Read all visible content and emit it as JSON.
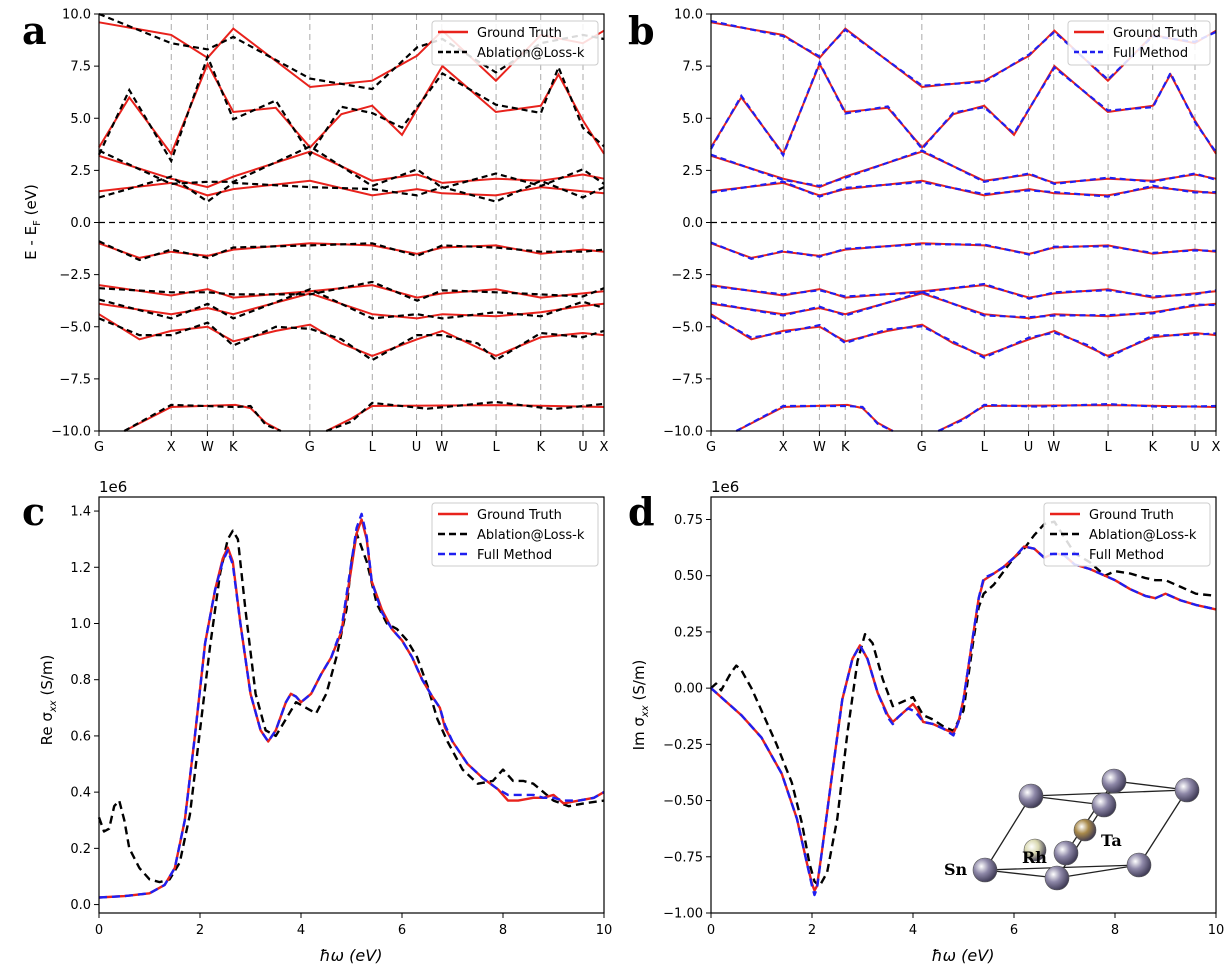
{
  "figure": {
    "panel_letters": [
      "a",
      "b",
      "c",
      "d"
    ],
    "inset": {
      "atoms": [
        "Rh",
        "Ta",
        "Sn"
      ],
      "colors": {
        "Sn": "#8e88a8",
        "Ta": "#a8894a",
        "Rh": "#d9d8b0",
        "cell_line": "#222222"
      }
    }
  },
  "chart_data": [
    {
      "id": "a",
      "type": "line",
      "title": "",
      "xlabel": "",
      "ylabel": "E - E_F (eV)",
      "ylabel_main": "E - E",
      "ylabel_sub": "F",
      "ylabel_unit": "(eV)",
      "ylim": [
        -10.0,
        10.0
      ],
      "yticks": [
        -10.0,
        -7.5,
        -5.0,
        -2.5,
        0.0,
        2.5,
        5.0,
        7.5,
        10.0
      ],
      "ytick_labels": [
        "−10.0",
        "−7.5",
        "−5.0",
        "−2.5",
        "0.0",
        "2.5",
        "5.0",
        "7.5",
        "10.0"
      ],
      "kpath_labels": [
        "G",
        "X",
        "W",
        "K",
        "G",
        "L",
        "U",
        "W",
        "L",
        "K",
        "U",
        "X"
      ],
      "kpath_positions": [
        0,
        0.1431,
        0.2147,
        0.2658,
        0.4175,
        0.5412,
        0.6288,
        0.6787,
        0.7863,
        0.8747,
        0.9584,
        1.0
      ],
      "fermi_level": 0.0,
      "legend": {
        "position": "top-right",
        "entries": [
          "Ground Truth",
          "Ablation@Loss-k"
        ]
      },
      "series": [
        {
          "name": "Ground Truth",
          "color": "#e8221c",
          "style": "solid"
        },
        {
          "name": "Ablation@Loss-k",
          "color": "#000000",
          "style": "dashed"
        }
      ]
    },
    {
      "id": "b",
      "type": "line",
      "title": "",
      "xlabel": "",
      "ylabel": "",
      "ylim": [
        -10.0,
        10.0
      ],
      "yticks": [
        -10.0,
        -7.5,
        -5.0,
        -2.5,
        0.0,
        2.5,
        5.0,
        7.5,
        10.0
      ],
      "ytick_labels": [
        "−10.0",
        "−7.5",
        "−5.0",
        "−2.5",
        "0.0",
        "2.5",
        "5.0",
        "7.5",
        "10.0"
      ],
      "kpath_labels": [
        "G",
        "X",
        "W",
        "K",
        "G",
        "L",
        "U",
        "W",
        "L",
        "K",
        "U",
        "X"
      ],
      "kpath_positions": [
        0,
        0.1431,
        0.2147,
        0.2658,
        0.4175,
        0.5412,
        0.6288,
        0.6787,
        0.7863,
        0.8747,
        0.9584,
        1.0
      ],
      "fermi_level": 0.0,
      "legend": {
        "position": "top-right",
        "entries": [
          "Ground Truth",
          "Full Method"
        ]
      },
      "series": [
        {
          "name": "Ground Truth",
          "color": "#e8221c",
          "style": "solid"
        },
        {
          "name": "Full Method",
          "color": "#1f1ff0",
          "style": "dashed"
        }
      ]
    },
    {
      "id": "c",
      "type": "line",
      "title": "",
      "xlabel": "ħω (eV)",
      "ylabel": "Re σ_xx (S/m)",
      "ylabel_prefix": "Re σ",
      "ylabel_sub": "xx",
      "ylabel_unit": "(S/m)",
      "scale_label": "1e6",
      "xlim": [
        0,
        10
      ],
      "ylim": [
        -0.03,
        1.45
      ],
      "xticks": [
        0,
        2,
        4,
        6,
        8,
        10
      ],
      "xtick_labels": [
        "0",
        "2",
        "4",
        "6",
        "8",
        "10"
      ],
      "yticks": [
        0.0,
        0.2,
        0.4,
        0.6,
        0.8,
        1.0,
        1.2,
        1.4
      ],
      "ytick_labels": [
        "0.0",
        "0.2",
        "0.4",
        "0.6",
        "0.8",
        "1.0",
        "1.2",
        "1.4"
      ],
      "legend": {
        "position": "top-right",
        "entries": [
          "Ground Truth",
          "Ablation@Loss-k",
          "Full Method"
        ]
      },
      "series": [
        {
          "name": "Ground Truth",
          "color": "#e8221c",
          "style": "solid",
          "x": [
            0,
            0.5,
            1.0,
            1.3,
            1.5,
            1.7,
            1.9,
            2.1,
            2.3,
            2.45,
            2.55,
            2.65,
            2.8,
            3.0,
            3.2,
            3.35,
            3.5,
            3.7,
            3.8,
            3.9,
            4.0,
            4.2,
            4.4,
            4.6,
            4.8,
            5.0,
            5.1,
            5.2,
            5.3,
            5.4,
            5.6,
            5.8,
            6.0,
            6.2,
            6.4,
            6.6,
            6.75,
            6.85,
            7.0,
            7.3,
            7.6,
            7.9,
            8.1,
            8.3,
            8.6,
            8.8,
            9.0,
            9.2,
            9.5,
            9.8,
            10.0
          ],
          "y": [
            0.025,
            0.03,
            0.04,
            0.07,
            0.13,
            0.3,
            0.6,
            0.93,
            1.12,
            1.23,
            1.27,
            1.22,
            1.0,
            0.75,
            0.62,
            0.58,
            0.62,
            0.72,
            0.75,
            0.74,
            0.72,
            0.75,
            0.82,
            0.88,
            0.97,
            1.2,
            1.32,
            1.37,
            1.3,
            1.15,
            1.05,
            0.98,
            0.94,
            0.88,
            0.8,
            0.74,
            0.7,
            0.63,
            0.58,
            0.5,
            0.45,
            0.41,
            0.37,
            0.37,
            0.38,
            0.38,
            0.39,
            0.36,
            0.37,
            0.38,
            0.4
          ]
        },
        {
          "name": "Ablation@Loss-k",
          "color": "#000000",
          "style": "dashed",
          "x": [
            0,
            0.1,
            0.2,
            0.3,
            0.4,
            0.5,
            0.6,
            0.8,
            1.0,
            1.2,
            1.4,
            1.6,
            1.8,
            2.0,
            2.2,
            2.4,
            2.55,
            2.65,
            2.75,
            2.9,
            3.1,
            3.3,
            3.5,
            3.7,
            3.9,
            4.1,
            4.3,
            4.5,
            4.7,
            4.9,
            5.0,
            5.1,
            5.3,
            5.5,
            5.7,
            5.9,
            6.1,
            6.3,
            6.5,
            6.7,
            6.9,
            7.2,
            7.5,
            7.8,
            8.0,
            8.2,
            8.4,
            8.6,
            8.8,
            9.0,
            9.3,
            9.6,
            10.0
          ],
          "y": [
            0.31,
            0.26,
            0.27,
            0.35,
            0.37,
            0.3,
            0.2,
            0.13,
            0.09,
            0.08,
            0.09,
            0.15,
            0.32,
            0.62,
            0.92,
            1.18,
            1.3,
            1.33,
            1.3,
            1.05,
            0.75,
            0.62,
            0.6,
            0.66,
            0.72,
            0.7,
            0.68,
            0.75,
            0.88,
            1.05,
            1.22,
            1.32,
            1.22,
            1.07,
            1.0,
            0.98,
            0.94,
            0.88,
            0.78,
            0.66,
            0.58,
            0.48,
            0.43,
            0.44,
            0.48,
            0.44,
            0.44,
            0.43,
            0.4,
            0.37,
            0.35,
            0.36,
            0.37
          ]
        },
        {
          "name": "Full Method",
          "color": "#1f1ff0",
          "style": "dashed",
          "x": [
            0,
            0.5,
            1.0,
            1.3,
            1.5,
            1.7,
            1.9,
            2.1,
            2.3,
            2.45,
            2.55,
            2.65,
            2.8,
            3.0,
            3.2,
            3.35,
            3.5,
            3.7,
            3.8,
            3.9,
            4.0,
            4.2,
            4.4,
            4.6,
            4.8,
            5.0,
            5.1,
            5.2,
            5.3,
            5.4,
            5.6,
            5.8,
            6.0,
            6.2,
            6.4,
            6.6,
            6.75,
            6.85,
            7.0,
            7.3,
            7.6,
            7.9,
            8.1,
            8.3,
            8.6,
            8.8,
            9.0,
            9.2,
            9.5,
            9.8,
            10.0
          ],
          "y": [
            0.025,
            0.03,
            0.04,
            0.07,
            0.13,
            0.3,
            0.6,
            0.93,
            1.12,
            1.22,
            1.26,
            1.21,
            1.0,
            0.75,
            0.62,
            0.58,
            0.62,
            0.72,
            0.75,
            0.74,
            0.72,
            0.75,
            0.82,
            0.88,
            0.98,
            1.22,
            1.34,
            1.39,
            1.31,
            1.15,
            1.04,
            0.98,
            0.94,
            0.88,
            0.8,
            0.74,
            0.7,
            0.64,
            0.58,
            0.5,
            0.45,
            0.41,
            0.39,
            0.39,
            0.39,
            0.38,
            0.38,
            0.37,
            0.37,
            0.38,
            0.4
          ]
        }
      ]
    },
    {
      "id": "d",
      "type": "line",
      "title": "",
      "xlabel": "ħω (eV)",
      "ylabel": "Im σ_xx (S/m)",
      "ylabel_prefix": "Im σ",
      "ylabel_sub": "xx",
      "ylabel_unit": "(S/m)",
      "scale_label": "1e6",
      "xlim": [
        0,
        10
      ],
      "ylim": [
        -1.0,
        0.85
      ],
      "xticks": [
        0,
        2,
        4,
        6,
        8,
        10
      ],
      "xtick_labels": [
        "0",
        "2",
        "4",
        "6",
        "8",
        "10"
      ],
      "yticks": [
        -1.0,
        -0.75,
        -0.5,
        -0.25,
        0.0,
        0.25,
        0.5,
        0.75
      ],
      "ytick_labels": [
        "−1.00",
        "−0.75",
        "−0.50",
        "−0.25",
        "0.00",
        "0.25",
        "0.50",
        "0.75"
      ],
      "legend": {
        "position": "top-right",
        "entries": [
          "Ground Truth",
          "Ablation@Loss-k",
          "Full Method"
        ]
      },
      "series": [
        {
          "name": "Ground Truth",
          "color": "#e8221c",
          "style": "solid",
          "x": [
            0,
            0.3,
            0.6,
            1.0,
            1.4,
            1.7,
            1.9,
            2.0,
            2.05,
            2.1,
            2.2,
            2.4,
            2.6,
            2.8,
            2.95,
            3.1,
            3.3,
            3.5,
            3.6,
            3.7,
            3.8,
            3.9,
            4.0,
            4.1,
            4.2,
            4.4,
            4.6,
            4.8,
            4.9,
            5.0,
            5.2,
            5.3,
            5.4,
            5.6,
            5.8,
            6.0,
            6.2,
            6.4,
            6.6,
            6.8,
            7.0,
            7.2,
            7.5,
            7.8,
            8.0,
            8.3,
            8.6,
            8.8,
            9.0,
            9.3,
            9.6,
            10.0
          ],
          "y": [
            0.0,
            -0.06,
            -0.12,
            -0.22,
            -0.38,
            -0.58,
            -0.78,
            -0.87,
            -0.9,
            -0.88,
            -0.72,
            -0.38,
            -0.05,
            0.13,
            0.19,
            0.13,
            -0.02,
            -0.12,
            -0.15,
            -0.13,
            -0.11,
            -0.09,
            -0.07,
            -0.1,
            -0.15,
            -0.16,
            -0.18,
            -0.2,
            -0.15,
            -0.05,
            0.25,
            0.4,
            0.48,
            0.51,
            0.54,
            0.58,
            0.63,
            0.62,
            0.58,
            0.6,
            0.59,
            0.55,
            0.53,
            0.5,
            0.48,
            0.44,
            0.41,
            0.4,
            0.42,
            0.39,
            0.37,
            0.35
          ]
        },
        {
          "name": "Ablation@Loss-k",
          "color": "#000000",
          "style": "dashed",
          "x": [
            0,
            0.1,
            0.2,
            0.3,
            0.4,
            0.5,
            0.6,
            0.8,
            1.0,
            1.3,
            1.6,
            1.8,
            1.95,
            2.05,
            2.15,
            2.3,
            2.5,
            2.7,
            2.9,
            3.05,
            3.2,
            3.4,
            3.6,
            3.8,
            4.0,
            4.1,
            4.2,
            4.4,
            4.6,
            4.8,
            5.0,
            5.2,
            5.3,
            5.4,
            5.6,
            5.8,
            6.0,
            6.2,
            6.4,
            6.6,
            6.8,
            7.0,
            7.2,
            7.5,
            7.8,
            8.0,
            8.3,
            8.6,
            8.8,
            9.0,
            9.3,
            9.6,
            10.0
          ],
          "y": [
            0.0,
            0.02,
            -0.01,
            0.03,
            0.07,
            0.1,
            0.08,
            0.0,
            -0.1,
            -0.25,
            -0.42,
            -0.6,
            -0.78,
            -0.86,
            -0.88,
            -0.82,
            -0.58,
            -0.2,
            0.12,
            0.24,
            0.2,
            0.04,
            -0.08,
            -0.06,
            -0.04,
            -0.08,
            -0.12,
            -0.14,
            -0.17,
            -0.19,
            -0.1,
            0.22,
            0.36,
            0.42,
            0.46,
            0.52,
            0.58,
            0.62,
            0.68,
            0.73,
            0.74,
            0.67,
            0.6,
            0.56,
            0.5,
            0.52,
            0.51,
            0.49,
            0.48,
            0.48,
            0.45,
            0.42,
            0.41
          ]
        },
        {
          "name": "Full Method",
          "color": "#1f1ff0",
          "style": "dashed",
          "x": [
            0,
            0.3,
            0.6,
            1.0,
            1.4,
            1.7,
            1.9,
            2.0,
            2.05,
            2.1,
            2.2,
            2.4,
            2.6,
            2.8,
            2.95,
            3.1,
            3.3,
            3.5,
            3.6,
            3.7,
            3.8,
            3.9,
            4.0,
            4.1,
            4.2,
            4.4,
            4.6,
            4.8,
            4.9,
            5.0,
            5.2,
            5.3,
            5.4,
            5.6,
            5.8,
            6.0,
            6.2,
            6.4,
            6.6,
            6.8,
            7.0,
            7.2,
            7.5,
            7.8,
            8.0,
            8.3,
            8.6,
            8.8,
            9.0,
            9.3,
            9.6,
            10.0
          ],
          "y": [
            0.0,
            -0.06,
            -0.12,
            -0.22,
            -0.38,
            -0.58,
            -0.78,
            -0.88,
            -0.92,
            -0.89,
            -0.72,
            -0.38,
            -0.05,
            0.13,
            0.19,
            0.13,
            -0.02,
            -0.13,
            -0.16,
            -0.13,
            -0.11,
            -0.09,
            -0.1,
            -0.12,
            -0.15,
            -0.16,
            -0.18,
            -0.21,
            -0.15,
            -0.05,
            0.25,
            0.4,
            0.49,
            0.51,
            0.54,
            0.58,
            0.63,
            0.62,
            0.58,
            0.6,
            0.59,
            0.55,
            0.53,
            0.5,
            0.48,
            0.44,
            0.41,
            0.4,
            0.42,
            0.39,
            0.37,
            0.35
          ]
        }
      ]
    }
  ]
}
